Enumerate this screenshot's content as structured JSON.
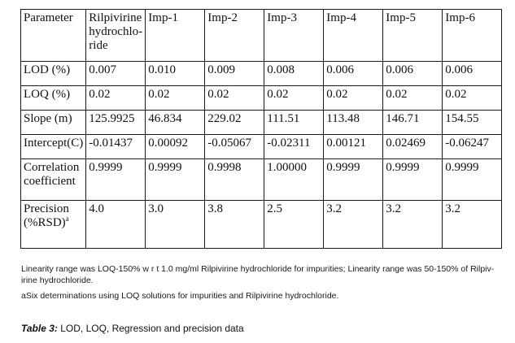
{
  "table": {
    "header": {
      "label": "Parameter",
      "columns": [
        [
          "Rilpivirine",
          "hydrochlo-",
          "ride"
        ],
        [
          "Imp-1"
        ],
        [
          "Imp-2"
        ],
        [
          "Imp-3"
        ],
        [
          "Imp-4"
        ],
        [
          "Imp-5"
        ],
        [
          "Imp-6"
        ]
      ]
    },
    "rows": [
      {
        "label": [
          "LOD (%)"
        ],
        "values": [
          "0.007",
          "0.010",
          "0.009",
          "0.008",
          "0.006",
          "0.006",
          "0.006"
        ]
      },
      {
        "label": [
          "LOQ (%)"
        ],
        "values": [
          "0.02",
          "0.02",
          "0.02",
          "0.02",
          "0.02",
          "0.02",
          "0.02"
        ]
      },
      {
        "label": [
          "Slope (m)"
        ],
        "values": [
          "125.9925",
          "46.834",
          "229.02",
          "111.51",
          "113.48",
          "146.71",
          "154.55"
        ]
      },
      {
        "label": [
          "Intercept(C)"
        ],
        "values": [
          "-0.01437",
          "0.00092",
          "-0.05067",
          "-0.02311",
          "0.00121",
          "0.02469",
          "-0.06247"
        ]
      },
      {
        "label": [
          "Correlation",
          "coefficient"
        ],
        "values": [
          "0.9999",
          "0.9999",
          "0.9998",
          "1.00000",
          "0.9999",
          "0.9999",
          "0.9999"
        ]
      },
      {
        "label": [
          "Precision",
          "(%RSD)"
        ],
        "label_sup": "a",
        "values": [
          "4.0",
          "3.0",
          "3.8",
          "2.5",
          "3.2",
          "3.2",
          "3.2"
        ]
      }
    ]
  },
  "footnotes": {
    "line1": " Linearity range was LOQ-150% w r t 1.0 mg/ml Rilpivirine hydrochloride for impurities; Linearity range was 50-150% of Rilpiv-",
    "line2": "irine hydrochloride.",
    "line3": "aSix determinations using LOQ solutions for impurities and Rilpivirine hydrochloride."
  },
  "caption": {
    "label": "Table 3:",
    "text": " LOD, LOQ, Regression and precision data"
  }
}
